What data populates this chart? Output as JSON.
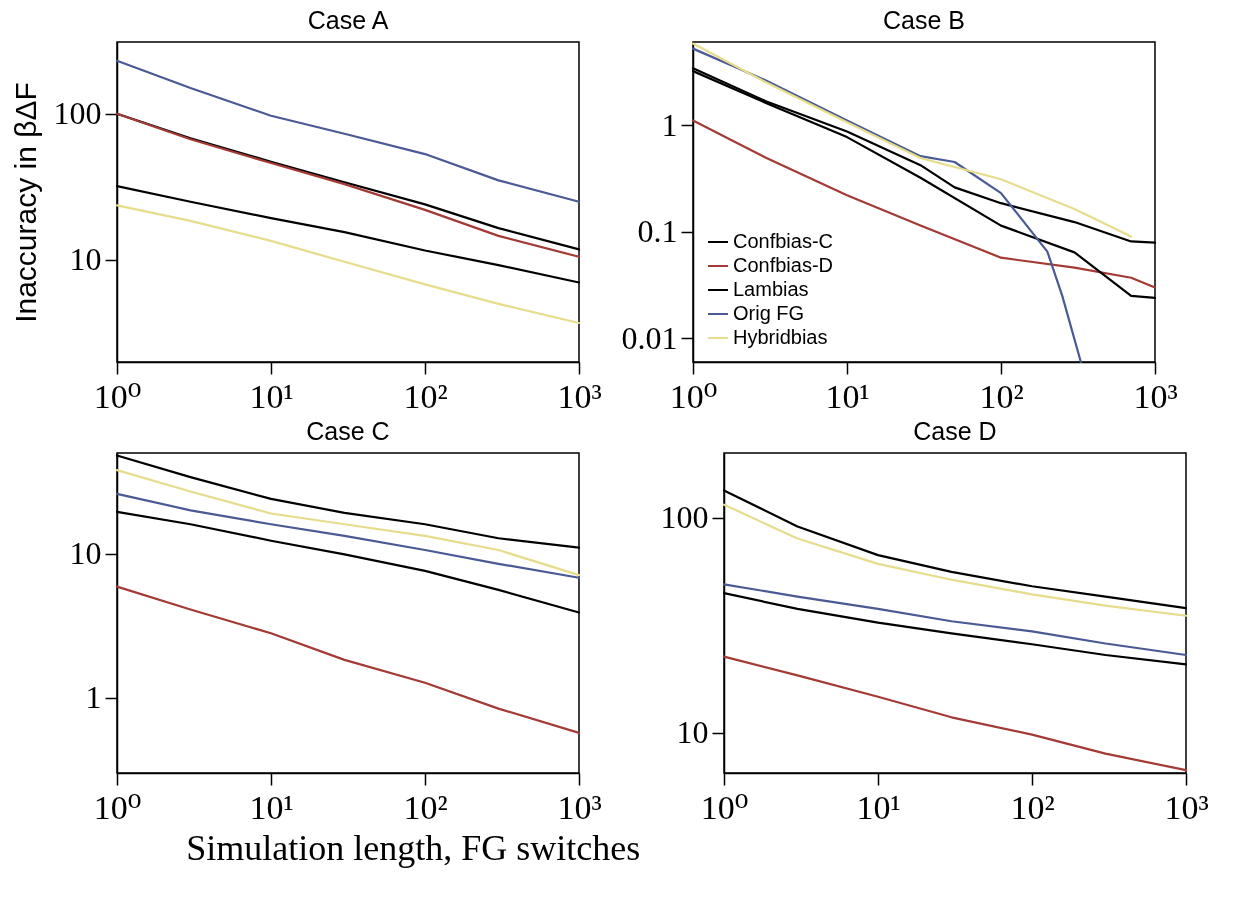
{
  "chart_data": [
    {
      "type": "line",
      "title": "Case A",
      "ylabel": "Inaccuracy in βΔF",
      "log": "xy",
      "xlim": [
        1,
        1000
      ],
      "xticks": [
        {
          "value": 1,
          "label": "10⁰"
        },
        {
          "value": 10,
          "label": "10¹"
        },
        {
          "value": 100,
          "label": "10²"
        },
        {
          "value": 1000,
          "label": "10³"
        }
      ],
      "ylim": [
        2,
        310
      ],
      "yticks": [
        10,
        100
      ],
      "x": [
        1,
        3,
        10,
        30,
        100,
        300,
        1000
      ],
      "series": [
        {
          "color": "#000000",
          "values": [
            100,
            68,
            47,
            34,
            24,
            16.5,
            11.8
          ]
        },
        {
          "color": "#a33a35",
          "values": [
            100,
            67,
            46,
            33,
            22,
            14.6,
            10.5
          ]
        },
        {
          "color": "#000000",
          "values": [
            32,
            25,
            19.3,
            15.5,
            11.6,
            9.2,
            7.0
          ]
        },
        {
          "color": "#4a5a94",
          "values": [
            231,
            150,
            97,
            73,
            53,
            35,
            25
          ]
        },
        {
          "color": "#e6dc8c",
          "values": [
            23.6,
            18.5,
            13.5,
            9.7,
            6.8,
            5.0,
            3.7
          ]
        }
      ]
    },
    {
      "type": "line",
      "title": "Case B",
      "log": "xy",
      "legend": "bottom left",
      "xlim": [
        1,
        1000
      ],
      "xticks": [
        {
          "value": 1,
          "label": "10⁰"
        },
        {
          "value": 10,
          "label": "10¹"
        },
        {
          "value": 100,
          "label": "10²"
        },
        {
          "value": 1000,
          "label": "10³"
        }
      ],
      "ylim": [
        0.006,
        6
      ],
      "yticks": [
        0.01,
        0.1,
        1
      ],
      "series": [
        {
          "name": "Confbias-C",
          "color": "#000000",
          "x": [
            1,
            3,
            10,
            30,
            50,
            100,
            300,
            700,
            1000
          ],
          "values": [
            3.4,
            1.66,
            0.87,
            0.42,
            0.26,
            0.185,
            0.123,
            0.081,
            0.079
          ]
        },
        {
          "name": "Confbias-D",
          "color": "#a33a35",
          "x": [
            1,
            3,
            10,
            30,
            100,
            300,
            700,
            1000
          ],
          "values": [
            1.1,
            0.49,
            0.22,
            0.114,
            0.057,
            0.046,
            0.037,
            0.03
          ]
        },
        {
          "name": "Lambias",
          "color": "#000000",
          "x": [
            1,
            3,
            10,
            30,
            100,
            300,
            700,
            1000
          ],
          "values": [
            3.2,
            1.6,
            0.77,
            0.32,
            0.114,
            0.064,
            0.025,
            0.024
          ]
        },
        {
          "name": "Orig FG",
          "color": "#4a5a94",
          "x": [
            1,
            3,
            10,
            30,
            50,
            100,
            200,
            250,
            330
          ],
          "values": [
            5.2,
            2.6,
            1.1,
            0.51,
            0.45,
            0.23,
            0.065,
            0.025,
            0.006
          ]
        },
        {
          "name": "Hybridbias",
          "color": "#e6dc8c",
          "x": [
            1,
            3,
            10,
            30,
            100,
            300,
            700
          ],
          "values": [
            5.8,
            2.5,
            1.06,
            0.49,
            0.31,
            0.163,
            0.09
          ]
        }
      ]
    },
    {
      "type": "line",
      "title": "Case C",
      "xlabel": "Simulation length, FG switches",
      "log": "xy",
      "xlim": [
        1,
        1000
      ],
      "xticks": [
        {
          "value": 1,
          "label": "10⁰"
        },
        {
          "value": 10,
          "label": "10¹"
        },
        {
          "value": 100,
          "label": "10²"
        },
        {
          "value": 1000,
          "label": "10³"
        }
      ],
      "ylim": [
        0.3,
        50
      ],
      "yticks": [
        1,
        10
      ],
      "x": [
        1,
        3,
        10,
        30,
        100,
        300,
        1000
      ],
      "series": [
        {
          "color": "#000000",
          "values": [
            48,
            34,
            24,
            19.2,
            16,
            12.8,
            11.0
          ]
        },
        {
          "color": "#a33a35",
          "values": [
            5.9,
            4.1,
            2.8,
            1.83,
            1.27,
            0.84,
            0.57
          ]
        },
        {
          "color": "#000000",
          "values": [
            19.5,
            16,
            12.3,
            9.9,
            7.6,
            5.6,
            3.9
          ]
        },
        {
          "color": "#4a5a94",
          "values": [
            26,
            20,
            16,
            13.3,
            10.6,
            8.5,
            6.8
          ]
        },
        {
          "color": "#e6dc8c",
          "values": [
            38,
            27,
            19,
            16,
            13.3,
            10.6,
            7.1
          ]
        }
      ]
    },
    {
      "type": "line",
      "title": "Case D",
      "log": "xy",
      "xlim": [
        1,
        1000
      ],
      "xticks": [
        {
          "value": 1,
          "label": "10⁰"
        },
        {
          "value": 10,
          "label": "10¹"
        },
        {
          "value": 100,
          "label": "10²"
        },
        {
          "value": 1000,
          "label": "10³"
        }
      ],
      "ylim": [
        6.5,
        200
      ],
      "yticks": [
        10,
        100
      ],
      "x": [
        1,
        3,
        10,
        30,
        100,
        300,
        1000
      ],
      "series": [
        {
          "color": "#000000",
          "values": [
            134,
            91,
            67,
            56,
            48,
            43,
            38
          ]
        },
        {
          "color": "#a33a35",
          "values": [
            22.6,
            18.5,
            14.7,
            11.8,
            9.8,
            8.0,
            6.7
          ]
        },
        {
          "color": "#000000",
          "values": [
            44.6,
            37.7,
            32.5,
            29,
            25.8,
            23,
            20.8
          ]
        },
        {
          "color": "#4a5a94",
          "values": [
            49,
            43,
            37.7,
            33,
            29.6,
            26,
            23
          ]
        },
        {
          "color": "#e6dc8c",
          "values": [
            115,
            80,
            61,
            51.5,
            44,
            39,
            35
          ]
        }
      ]
    }
  ]
}
